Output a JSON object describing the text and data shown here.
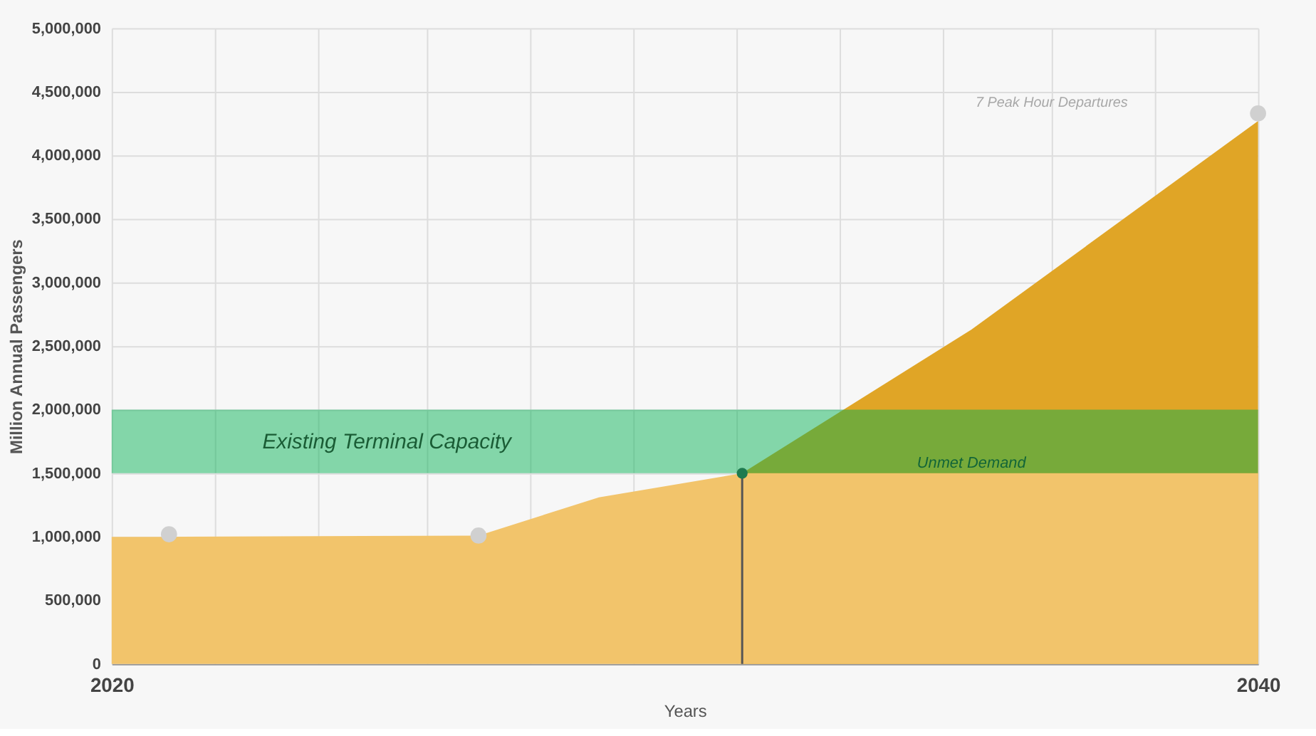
{
  "chart_data": {
    "type": "area",
    "xlabel": "Years",
    "ylabel": "Million Annual Passengers",
    "xlim": [
      2020,
      2040
    ],
    "xticks": [
      2020,
      {
        "value": 2021.8,
        "label": null
      },
      {
        "value": 2023.6,
        "label": null
      },
      {
        "value": 2025.5,
        "label": null
      },
      {
        "value": 2027.3,
        "label": null
      },
      {
        "value": 2029.1,
        "label": null
      },
      {
        "value": 2030.9,
        "label": null
      },
      {
        "value": 2032.7,
        "label": null
      },
      {
        "value": 2034.5,
        "label": null
      },
      {
        "value": 2036.4,
        "label": null
      },
      {
        "value": 2038.2,
        "label": null
      },
      2040
    ],
    "ylim": [
      0,
      5000000
    ],
    "yticks": [
      0,
      {
        "value": 500000,
        "label": "500,000"
      },
      {
        "value": 1000000,
        "label": "1,000,000"
      },
      {
        "value": 1500000,
        "label": "1,500,000"
      },
      {
        "value": 2000000,
        "label": "2,000,000"
      },
      {
        "value": 2500000,
        "label": "2,500,000"
      },
      {
        "value": 3000000,
        "label": "3,000,000"
      },
      {
        "value": 3500000,
        "label": "3,500,000"
      },
      {
        "value": 4000000,
        "label": "4,000,000"
      },
      {
        "value": 4500000,
        "label": "4,500,000"
      },
      {
        "value": 5000000,
        "label": "5,000,000"
      }
    ],
    "grid": true,
    "series": [
      {
        "name": "Unmet Demand",
        "color": "#e0a526",
        "x": [
          2031,
          2035,
          2040
        ],
        "values": [
          1500000,
          2630000,
          4270000
        ]
      },
      {
        "color": "#f2c46b",
        "x": [
          2020,
          2021,
          2026.4,
          2028.5,
          2031,
          2040
        ],
        "values": [
          1000000,
          1000000,
          1010000,
          1310000,
          1500000,
          1500000
        ]
      },
      {
        "type": "scatter",
        "marker": "circle",
        "color": "#d0d0d0",
        "x": [
          2021,
          2026.4,
          2040
        ],
        "values": [
          1020000,
          1010000,
          4330000
        ]
      },
      {
        "type": "scatter",
        "marker": "circle",
        "color": "#1e7a4f",
        "x": [
          2031
        ],
        "values": [
          1500000
        ]
      }
    ],
    "bands": [
      {
        "axis": "y",
        "from": 1500000,
        "to": 2000000,
        "label": "Existing Terminal Capacity",
        "color": "#00b050"
      }
    ],
    "ref_lines": [
      {
        "axis": "x",
        "value": 2031,
        "color": "#555555"
      }
    ],
    "annotations": [
      "7 Peak Hour Departures"
    ]
  }
}
